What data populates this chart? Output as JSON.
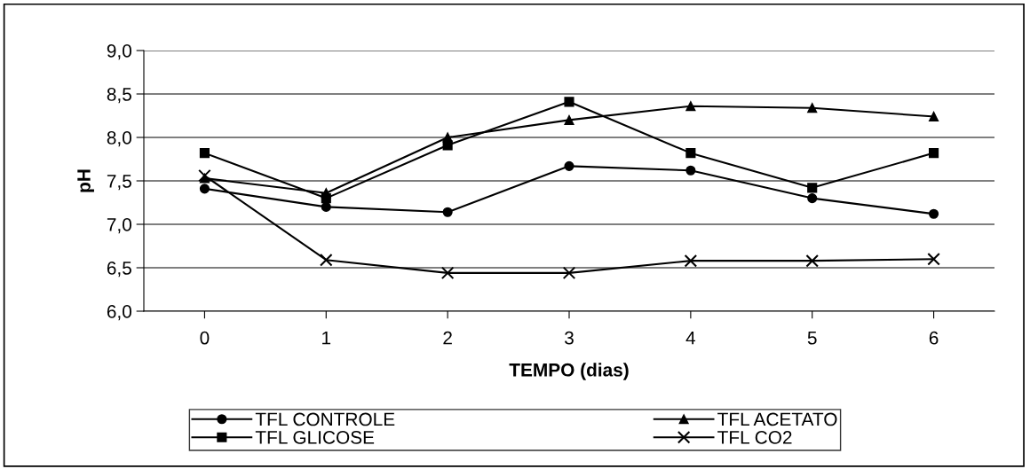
{
  "chart_data": {
    "type": "line",
    "xlabel": "TEMPO (dias)",
    "ylabel": "pH",
    "categories": [
      "0",
      "1",
      "2",
      "3",
      "4",
      "5",
      "6"
    ],
    "series": [
      {
        "name": "TFL CONTROLE",
        "color": "#000000",
        "marker": "circle",
        "values": [
          7.41,
          7.2,
          7.14,
          7.67,
          7.62,
          7.3,
          7.12
        ]
      },
      {
        "name": "TFL GLICOSE",
        "color": "#000000",
        "marker": "square",
        "values": [
          7.82,
          7.3,
          7.91,
          8.41,
          7.82,
          7.42,
          7.82
        ]
      },
      {
        "name": "TFL ACETATO",
        "color": "#000000",
        "marker": "triangle",
        "values": [
          7.53,
          7.36,
          8.0,
          8.2,
          8.36,
          8.34,
          8.24
        ]
      },
      {
        "name": "TFL CO2",
        "color": "#000000",
        "marker": "cross",
        "values": [
          7.56,
          6.59,
          6.44,
          6.44,
          6.58,
          6.58,
          6.6
        ]
      }
    ],
    "ylim": [
      6.0,
      9.0
    ],
    "yticks": [
      {
        "value": 6.0,
        "label": "6,0"
      },
      {
        "value": 6.5,
        "label": "6,5"
      },
      {
        "value": 7.0,
        "label": "7,0"
      },
      {
        "value": 7.5,
        "label": "7,5"
      },
      {
        "value": 8.0,
        "label": "8,0"
      },
      {
        "value": 8.5,
        "label": "8,5"
      },
      {
        "value": 9.0,
        "label": "9,0"
      }
    ],
    "grid": "y",
    "legend": "bottom",
    "line_style": "solid"
  }
}
